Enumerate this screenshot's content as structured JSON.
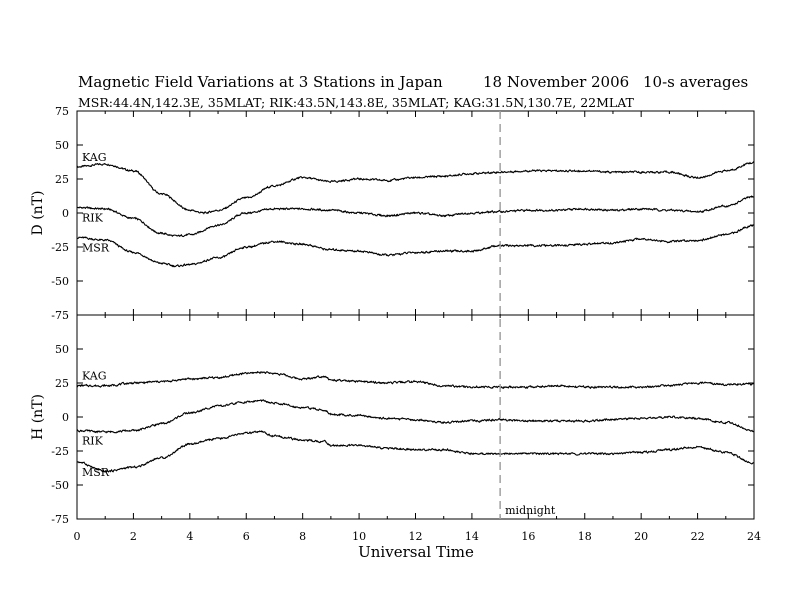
{
  "header": {
    "title": "Magnetic Field Variations at 3 Stations in Japan",
    "date": "18 November 2006",
    "averaging": "10-s averages",
    "stations": "MSR:44.4N,142.3E, 35MLAT;  RIK:43.5N,143.8E, 35MLAT;  KAG:31.5N,130.7E, 22MLAT"
  },
  "chart_data": [
    {
      "type": "line",
      "panel": "D",
      "ylabel": "D (nT)",
      "xlabel": "",
      "xlim": [
        0,
        24
      ],
      "ylim": [
        -75,
        75
      ],
      "yticks": [
        75,
        50,
        25,
        0,
        -25,
        -50,
        -75
      ],
      "grid": false,
      "series": [
        {
          "name": "KAG",
          "x": [
            0,
            1,
            2,
            3,
            4,
            4.5,
            5,
            6,
            7,
            8,
            9,
            10,
            11,
            12,
            13,
            14,
            15,
            16,
            17,
            18,
            19,
            20,
            21,
            22,
            23,
            24
          ],
          "values": [
            34,
            36,
            31,
            14,
            2,
            0,
            2,
            11,
            20,
            26,
            23,
            25,
            24,
            26,
            27,
            29,
            30,
            31,
            31,
            31,
            30,
            30,
            30,
            26,
            31,
            37
          ]
        },
        {
          "name": "RIK",
          "x": [
            0,
            1,
            2,
            3,
            3.5,
            4,
            5,
            6,
            7,
            8,
            9,
            10,
            11,
            12,
            13,
            14,
            15,
            16,
            17,
            18,
            19,
            20,
            21,
            22,
            23,
            24
          ],
          "values": [
            4,
            3,
            -4,
            -15,
            -17,
            -16,
            -9,
            0,
            3,
            3,
            2,
            0,
            -2,
            0,
            -2,
            0,
            1,
            2,
            2,
            3,
            2,
            3,
            2,
            1,
            5,
            12
          ]
        },
        {
          "name": "MSR",
          "x": [
            0,
            1,
            2,
            3,
            3.5,
            4,
            5,
            6,
            7,
            8,
            9,
            10,
            11,
            12,
            13,
            14,
            15,
            16,
            17,
            18,
            19,
            20,
            21,
            22,
            23,
            24
          ],
          "values": [
            -18,
            -20,
            -29,
            -37,
            -39,
            -38,
            -33,
            -25,
            -21,
            -23,
            -27,
            -28,
            -31,
            -29,
            -28,
            -28,
            -24,
            -24,
            -24,
            -23,
            -22,
            -19,
            -21,
            -20,
            -16,
            -9
          ]
        }
      ]
    },
    {
      "type": "line",
      "panel": "H",
      "ylabel": "H (nT)",
      "xlabel": "Universal Time",
      "xlim": [
        0,
        24
      ],
      "ylim": [
        -75,
        75
      ],
      "xticks": [
        0,
        2,
        4,
        6,
        8,
        10,
        12,
        14,
        16,
        18,
        20,
        22,
        24
      ],
      "yticks": [
        50,
        25,
        0,
        -25,
        -50,
        -75
      ],
      "grid": false,
      "series": [
        {
          "name": "KAG",
          "x": [
            0,
            1,
            2,
            3,
            4,
            5,
            6,
            6.5,
            7,
            8,
            8.8,
            9,
            10,
            11,
            12,
            13,
            14,
            15,
            16,
            17,
            18,
            19,
            20,
            21,
            22,
            23,
            24
          ],
          "values": [
            23,
            23,
            25,
            26,
            28,
            29,
            32,
            33,
            32,
            28,
            30,
            27,
            26,
            25,
            26,
            23,
            22,
            22,
            22,
            23,
            22,
            22,
            22,
            23,
            25,
            24,
            24
          ]
        },
        {
          "name": "RIK",
          "x": [
            0,
            1,
            2,
            3,
            4,
            5,
            6,
            6.5,
            7,
            8,
            8.8,
            9,
            10,
            11,
            12,
            13,
            14,
            15,
            16,
            17,
            18,
            19,
            20,
            21,
            22,
            23,
            24
          ],
          "values": [
            -10,
            -11,
            -10,
            -5,
            3,
            8,
            11,
            12,
            10,
            7,
            5,
            2,
            1,
            -1,
            -2,
            -4,
            -3,
            -2,
            -3,
            -3,
            -3,
            -2,
            -1,
            0,
            -1,
            -4,
            -10
          ]
        },
        {
          "name": "MSR",
          "x": [
            0,
            1,
            2,
            3,
            4,
            5,
            6,
            6.5,
            7,
            8,
            8.8,
            9,
            10,
            11,
            12,
            13,
            14,
            15,
            16,
            17,
            18,
            19,
            20,
            21,
            22,
            23,
            24
          ],
          "values": [
            -33,
            -40,
            -37,
            -30,
            -20,
            -16,
            -12,
            -11,
            -14,
            -17,
            -18,
            -21,
            -21,
            -23,
            -24,
            -24,
            -27,
            -27,
            -27,
            -27,
            -27,
            -27,
            -26,
            -24,
            -22,
            -26,
            -34
          ]
        }
      ]
    }
  ],
  "marker": {
    "x": 15,
    "label": "midnight"
  },
  "colors": {
    "trace": "#000000",
    "marker": "#a0a0a0"
  }
}
